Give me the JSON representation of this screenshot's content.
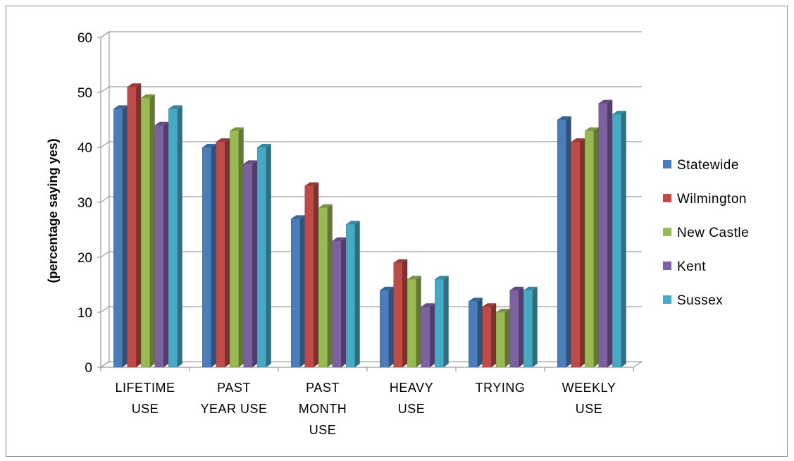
{
  "chart_data": {
    "type": "bar",
    "title": "",
    "xlabel": "",
    "ylabel": "(percentage saying yes)",
    "ylim": [
      0,
      60
    ],
    "y_ticks": [
      0,
      10,
      20,
      30,
      40,
      50,
      60
    ],
    "grid": true,
    "legend_position": "right",
    "categories": [
      [
        "LIFETIME",
        "USE"
      ],
      [
        "PAST",
        "YEAR USE"
      ],
      [
        "PAST",
        "MONTH",
        "USE"
      ],
      [
        "HEAVY",
        "USE"
      ],
      [
        "TRYING"
      ],
      [
        "WEEKLY",
        "USE"
      ]
    ],
    "series": [
      {
        "name": "Statewide",
        "color": "#4a7ebb",
        "values": [
          47,
          40,
          27,
          14,
          12,
          45
        ]
      },
      {
        "name": "Wilmington",
        "color": "#be4b48",
        "values": [
          51,
          41,
          33,
          19,
          11,
          41
        ]
      },
      {
        "name": "New Castle",
        "color": "#98b954",
        "values": [
          49,
          43,
          29,
          16,
          10,
          43
        ]
      },
      {
        "name": "Kent",
        "color": "#7d60a0",
        "values": [
          44,
          37,
          23,
          11,
          14,
          48
        ]
      },
      {
        "name": "Sussex",
        "color": "#46aac5",
        "values": [
          47,
          40,
          26,
          16,
          14,
          46
        ]
      }
    ]
  }
}
